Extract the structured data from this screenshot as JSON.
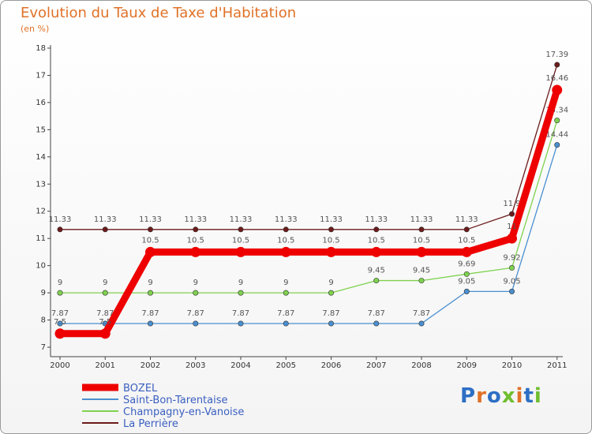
{
  "title": "Evolution du Taux de Taxe d'Habitation",
  "unit": "(en %)",
  "logo": "Proxiti",
  "chart_data": {
    "type": "line",
    "categories": [
      "2000",
      "2001",
      "2002",
      "2003",
      "2004",
      "2005",
      "2006",
      "2007",
      "2008",
      "2009",
      "2010",
      "2011"
    ],
    "ylim": [
      7,
      18
    ],
    "yticks": [
      7,
      8,
      9,
      10,
      11,
      12,
      13,
      14,
      15,
      16,
      17,
      18
    ],
    "grid": false,
    "legend": "bottom-left",
    "series": [
      {
        "name": "BOZEL",
        "color": "#ee0000",
        "values": [
          7.5,
          7.5,
          10.5,
          10.5,
          10.5,
          10.5,
          10.5,
          10.5,
          10.5,
          10.5,
          11,
          16.46
        ],
        "labels": [
          "7.5",
          "7.5",
          "10.5",
          "10.5",
          "10.5",
          "10.5",
          "10.5",
          "10.5",
          "10.5",
          "10.5",
          "11",
          "16.46"
        ]
      },
      {
        "name": "Saint-Bon-Tarentaise",
        "color": "#4a8fd0",
        "values": [
          7.87,
          7.87,
          7.87,
          7.87,
          7.87,
          7.87,
          7.87,
          7.87,
          7.87,
          9.05,
          9.05,
          14.44
        ],
        "labels": [
          "7.87",
          "7.87",
          "7.87",
          "7.87",
          "7.87",
          "7.87",
          "7.87",
          "7.87",
          "7.87",
          "9.05",
          "9.05",
          "14.44"
        ]
      },
      {
        "name": "Champagny-en-Vanoise",
        "color": "#7fd24f",
        "values": [
          9,
          9,
          9,
          9,
          9,
          9,
          9,
          9.45,
          9.45,
          9.69,
          9.92,
          15.34
        ],
        "labels": [
          "9",
          "9",
          "9",
          "9",
          "9",
          "9",
          "9",
          "9.45",
          "9.45",
          "9.69",
          "9.92",
          "15.34"
        ]
      },
      {
        "name": "La Perrière",
        "color": "#6b1a1a",
        "values": [
          11.33,
          11.33,
          11.33,
          11.33,
          11.33,
          11.33,
          11.33,
          11.33,
          11.33,
          11.33,
          11.9,
          17.39
        ],
        "labels": [
          "11.33",
          "11.33",
          "11.33",
          "11.33",
          "11.33",
          "11.33",
          "11.33",
          "11.33",
          "11.33",
          "11.33",
          "11.9",
          "17.39"
        ]
      }
    ]
  }
}
